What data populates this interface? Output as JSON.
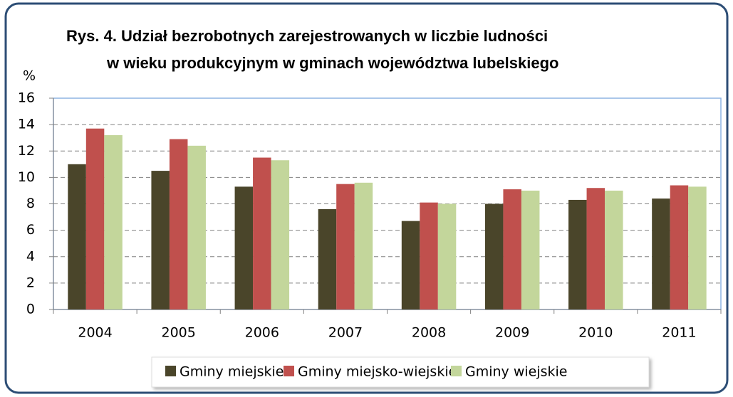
{
  "chart_data": {
    "type": "bar",
    "title": [
      "Rys. 4. Udział bezrobotnych zarejestrowanych w liczbie ludności",
      "w wieku produkcyjnym w gminach województwa lubelskiego"
    ],
    "ylabel": "%",
    "categories": [
      "2004",
      "2005",
      "2006",
      "2007",
      "2008",
      "2009",
      "2010",
      "2011"
    ],
    "series": [
      {
        "name": "Gminy miejskie",
        "color": "#4a452a",
        "values": [
          11,
          10.5,
          9.3,
          7.6,
          6.7,
          8.0,
          8.3,
          8.4
        ]
      },
      {
        "name": "Gminy miejsko-wiejskie",
        "color": "#c0504d",
        "values": [
          13.7,
          12.9,
          11.5,
          9.5,
          8.1,
          9.1,
          9.2,
          9.4
        ]
      },
      {
        "name": "Gminy wiejskie",
        "color": "#c3d69b",
        "values": [
          13.2,
          12.4,
          11.3,
          9.6,
          8.0,
          9.0,
          9.0,
          9.3
        ]
      }
    ],
    "ylim": [
      0,
      16
    ],
    "yticks": [
      0,
      2,
      4,
      6,
      8,
      10,
      12,
      14,
      16
    ],
    "grid": true,
    "legend": "bottom"
  }
}
